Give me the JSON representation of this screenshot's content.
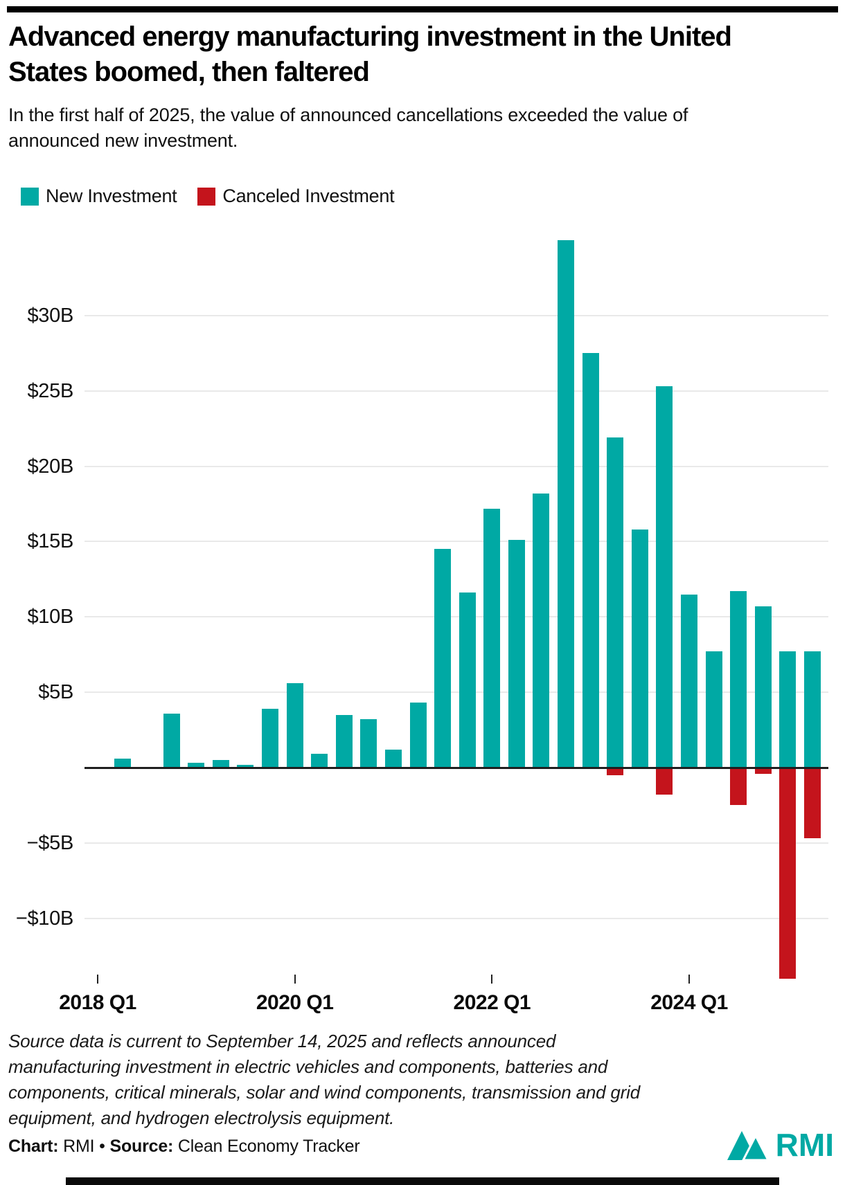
{
  "chart_data": {
    "type": "bar",
    "title": "Advanced energy manufacturing investment in the United States boomed, then faltered",
    "subtitle": "In the first half of 2025, the value of announced cancellations exceeded the value of announced new investment.",
    "unit": "billions of USD",
    "categories": [
      "2018 Q1",
      "2018 Q2",
      "2018 Q3",
      "2018 Q4",
      "2019 Q1",
      "2019 Q2",
      "2019 Q3",
      "2019 Q4",
      "2020 Q1",
      "2020 Q2",
      "2020 Q3",
      "2020 Q4",
      "2021 Q1",
      "2021 Q2",
      "2021 Q3",
      "2021 Q4",
      "2022 Q1",
      "2022 Q2",
      "2022 Q3",
      "2022 Q4",
      "2023 Q1",
      "2023 Q2",
      "2023 Q3",
      "2023 Q4",
      "2024 Q1",
      "2024 Q2",
      "2024 Q3",
      "2024 Q4",
      "2025 Q1",
      "2025 Q2"
    ],
    "series": [
      {
        "name": "New Investment",
        "color": "#00A9A4",
        "values": [
          0,
          0.6,
          0,
          3.6,
          0.3,
          0.5,
          0.2,
          3.9,
          5.6,
          0.9,
          3.5,
          3.2,
          1.2,
          4.3,
          14.5,
          11.6,
          17.2,
          15.1,
          18.2,
          35.0,
          27.5,
          21.9,
          15.8,
          25.3,
          11.5,
          7.7,
          11.7,
          10.7,
          7.7,
          7.7
        ]
      },
      {
        "name": "Canceled Investment",
        "color": "#C4141C",
        "values": [
          0,
          0,
          0,
          0,
          0,
          0,
          0,
          0,
          0,
          0,
          0,
          0,
          0,
          0,
          0,
          0,
          0,
          0,
          0,
          0,
          0,
          -0.5,
          0,
          -1.8,
          -0.1,
          0,
          -2.5,
          -0.4,
          -14.0,
          -4.7
        ]
      }
    ],
    "y_axis": {
      "grid": true,
      "range": [
        -14,
        36
      ],
      "ticks": [
        {
          "label": "$30B",
          "value": 30
        },
        {
          "label": "$25B",
          "value": 25
        },
        {
          "label": "$20B",
          "value": 20
        },
        {
          "label": "$15B",
          "value": 15
        },
        {
          "label": "$10B",
          "value": 10
        },
        {
          "label": "$5B",
          "value": 5
        },
        {
          "label": "−$5B",
          "value": -5
        },
        {
          "label": "−$10B",
          "value": -10
        }
      ]
    },
    "x_axis": {
      "ticks": [
        {
          "label": "2018 Q1",
          "index": 0
        },
        {
          "label": "2020 Q1",
          "index": 8
        },
        {
          "label": "2022 Q1",
          "index": 16
        },
        {
          "label": "2024 Q1",
          "index": 24
        }
      ]
    },
    "legend_position": "top-left"
  },
  "footer": {
    "note": "Source data is current to September 14, 2025 and reflects announced manufacturing investment in electric vehicles and components, batteries and components, critical minerals, solar and wind components, transmission and grid equipment, and hydrogen electrolysis equipment.",
    "credit": {
      "chart_label": "Chart:",
      "chart_value": "RMI",
      "separator": "•",
      "source_label": "Source:",
      "source_value": "Clean Economy Tracker"
    },
    "logo_text": "RMI",
    "logo_color": "#00A9A4"
  }
}
